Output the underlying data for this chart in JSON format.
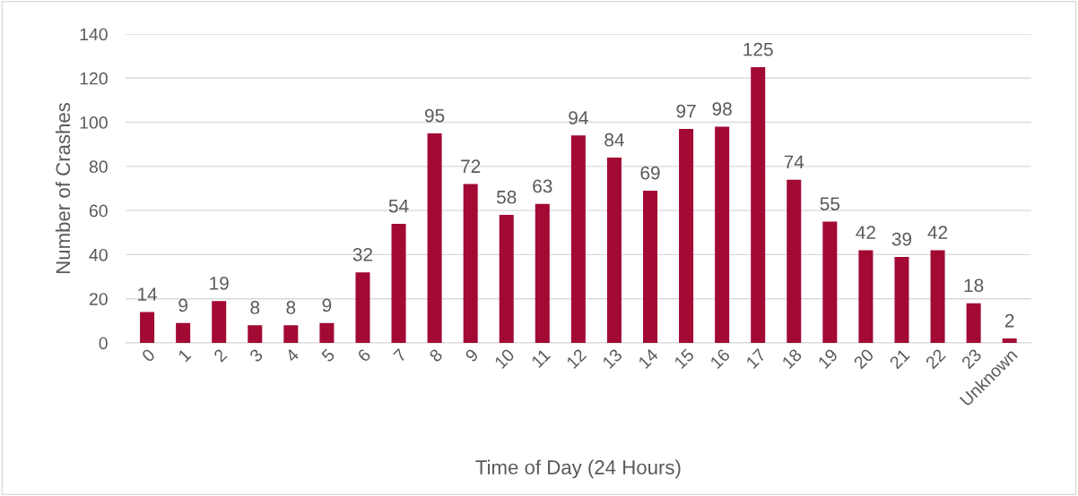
{
  "chart_data": {
    "type": "bar",
    "xlabel": "Time of Day (24 Hours)",
    "ylabel": "Number of Crashes",
    "categories": [
      "0",
      "1",
      "2",
      "3",
      "4",
      "5",
      "6",
      "7",
      "8",
      "9",
      "10",
      "11",
      "12",
      "13",
      "14",
      "15",
      "16",
      "17",
      "18",
      "19",
      "20",
      "21",
      "22",
      "23",
      "Unknown"
    ],
    "values": [
      14,
      9,
      19,
      8,
      8,
      9,
      32,
      54,
      95,
      72,
      58,
      63,
      94,
      84,
      69,
      97,
      98,
      125,
      74,
      55,
      42,
      39,
      42,
      18,
      2
    ],
    "color": "#a20a34",
    "ylim": [
      0,
      140
    ],
    "yticks": [
      0,
      20,
      40,
      60,
      80,
      100,
      120,
      140
    ],
    "grid": "y",
    "data_labels": true
  }
}
